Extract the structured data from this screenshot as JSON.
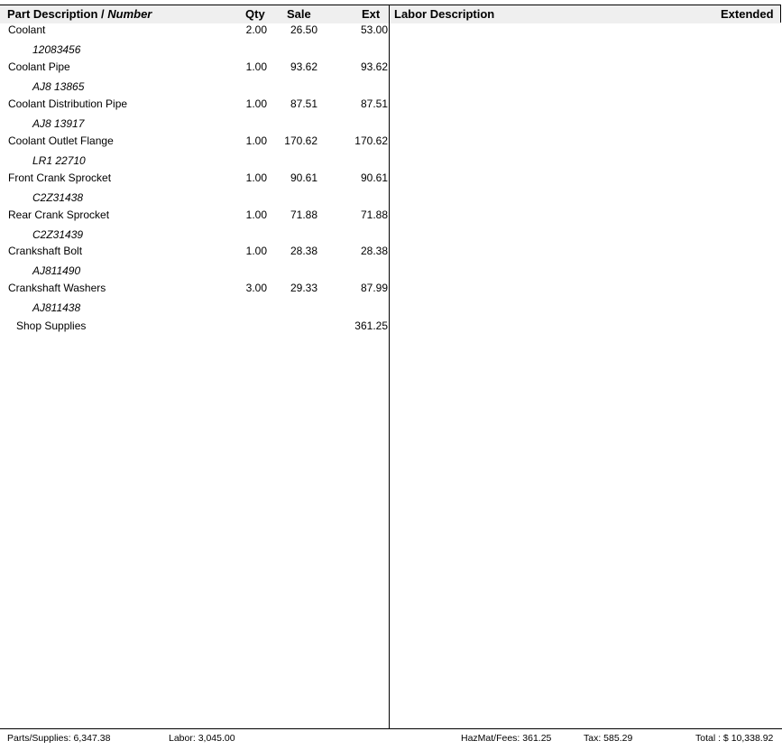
{
  "header": {
    "part_desc": "Part Description / ",
    "part_number": "Number",
    "qty": "Qty",
    "sale": "Sale",
    "ext": "Ext",
    "labor_desc": "Labor Description",
    "extended": "Extended"
  },
  "parts": [
    {
      "description": "Coolant",
      "number": "12083456",
      "qty": "2.00",
      "sale": "26.50",
      "ext": "53.00"
    },
    {
      "description": "Coolant Pipe",
      "number": "AJ8 13865",
      "qty": "1.00",
      "sale": "93.62",
      "ext": "93.62"
    },
    {
      "description": "Coolant Distribution Pipe",
      "number": "AJ8 13917",
      "qty": "1.00",
      "sale": "87.51",
      "ext": "87.51"
    },
    {
      "description": "Coolant Outlet Flange",
      "number": "LR1 22710",
      "qty": "1.00",
      "sale": "170.62",
      "ext": "170.62"
    },
    {
      "description": "Front Crank Sprocket",
      "number": "C2Z31438",
      "qty": "1.00",
      "sale": "90.61",
      "ext": "90.61"
    },
    {
      "description": "Rear Crank Sprocket",
      "number": "C2Z31439",
      "qty": "1.00",
      "sale": "71.88",
      "ext": "71.88"
    },
    {
      "description": "Crankshaft Bolt",
      "number": "AJ811490",
      "qty": "1.00",
      "sale": "28.38",
      "ext": "28.38"
    },
    {
      "description": "Crankshaft Washers",
      "number": "AJ811438",
      "qty": "3.00",
      "sale": "29.33",
      "ext": "87.99"
    }
  ],
  "shop_supplies": {
    "label": "Shop Supplies",
    "ext": "361.25"
  },
  "footer": {
    "parts": "Parts/Supplies: 6,347.38",
    "labor": "Labor: 3,045.00",
    "hazmat": "HazMat/Fees: 361.25",
    "tax": "Tax: 585.29",
    "total": "Total :  $ 10,338.92"
  }
}
